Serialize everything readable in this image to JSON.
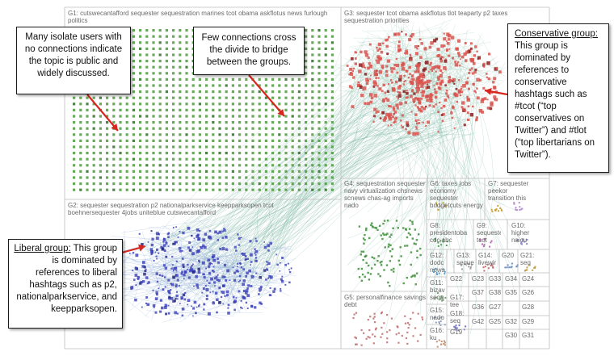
{
  "groups": {
    "g1": "G1: cutswecantafford sequester sequestration marines tcot obama askflotus news furlough politics",
    "g2": "G2: sequester sequestration p2 nationalparkservice keepparksopen tcot boehnersequester 4jobs uniteblue cutswecantafford",
    "g3": "G3: sequester tcot obama askflotus tlot teaparty p2 taxes sequestration priorities",
    "g4": "G4: sequestration sequester navy virtualization chsnews scnews chas-ag imports nado",
    "g5": "G5: personalfinance savings debt",
    "g6": "G6: taxes jobs economy sequester budgetcuts energy",
    "g7": "G7: sequester peekor transition this",
    "g8": "G8: presidentoba cdc abc",
    "g9": "G9: sequester tcot",
    "g10": "G10: higher naicu",
    "g11": "G11: bizav sequ",
    "g12": "G12: dodc news",
    "g13": "G13: seque",
    "g14": "G14: livewir",
    "g15": "G15: nado",
    "g16": "G16: ku",
    "g17": "G17: tee",
    "g18": "G18: seq",
    "g19": "G19",
    "g20": "G20",
    "g21": "G21: seq",
    "g22": "G22",
    "g23": "G23",
    "g24": "G24",
    "g25": "G25",
    "g26": "G26",
    "g27": "G27",
    "g28": "G28",
    "g29": "G29",
    "g30": "G30",
    "g31": "G31",
    "g32": "G32",
    "g33": "G33",
    "g34": "G34",
    "g35": "G35",
    "g36": "G36",
    "g37": "G37",
    "g38": "G38",
    "g42": "G42"
  },
  "callouts": {
    "isolates": "Many isolate users with no connections indicate the topic is public and widely discussed.",
    "bridge": "Few connections cross the divide to bridge between the groups.",
    "conservative_head": "Conservative group:",
    "conservative_body": "This group is dominated by references to conservative hashtags such as #tcot (“top conservatives on Twitter”) and #tlot (“top libertarians on Twitter”).",
    "liberal_head": "Liberal group:",
    "liberal_body": "This group is dominated by references to liberal hashtags such as p2, nationalparkservice, and keepparksopen."
  },
  "colors": {
    "isolates": "#4e9a3c",
    "conservative": "#d9534f",
    "liberal": "#3a3fb8",
    "edge": "#7fb8a4",
    "arrow": "#d7261e",
    "grid": "#bdbdbd"
  }
}
